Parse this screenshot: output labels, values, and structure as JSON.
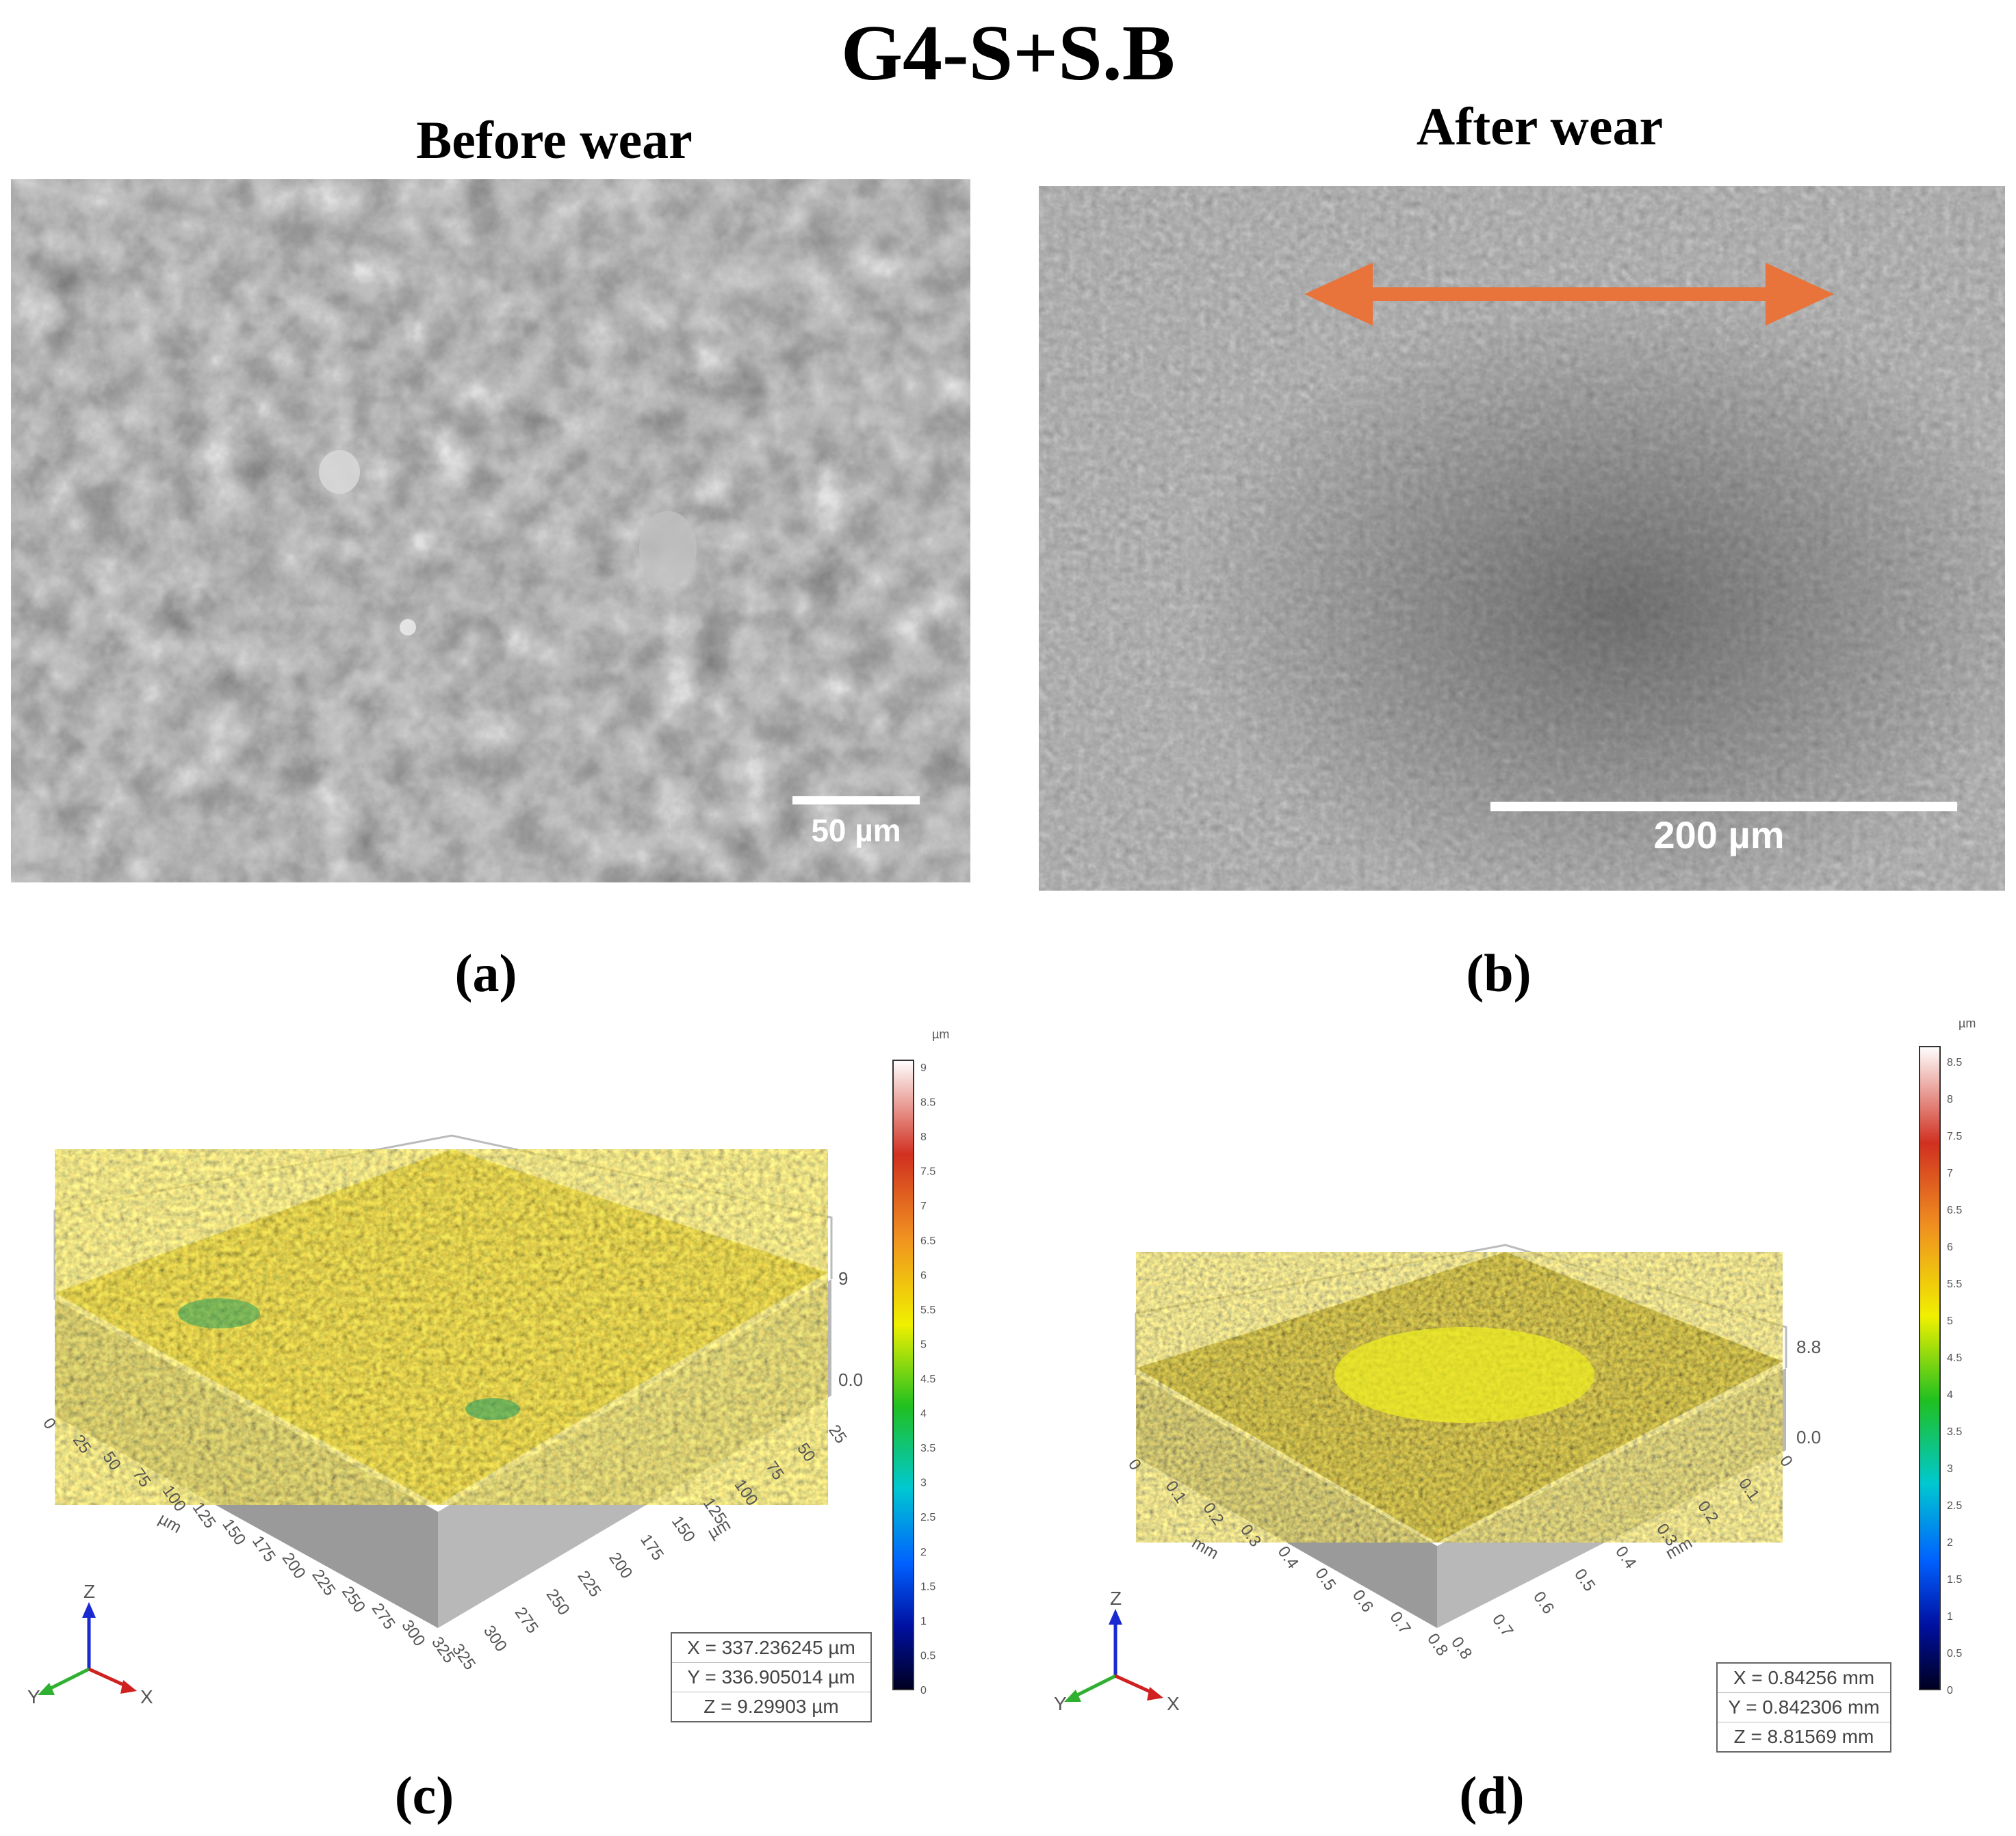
{
  "title": "G4-S+S.B",
  "panels": {
    "a": {
      "caption": "Before wear",
      "label": "(a)",
      "scale_bar": "50 µm"
    },
    "b": {
      "caption": "After  wear",
      "label": "(b)",
      "scale_bar": "200 µm",
      "arrow_color": "#e8743b"
    },
    "c": {
      "label": "(c)",
      "unit_top": "µm",
      "colorbar_ticks": [
        "9",
        "8.5",
        "8",
        "7.5",
        "7",
        "6.5",
        "6",
        "5.5",
        "5",
        "4.5",
        "4",
        "3.5",
        "3",
        "2.5",
        "2",
        "1.5",
        "1",
        "0.5",
        "0"
      ],
      "z_max": "9",
      "z_min": "0.0",
      "x_unit": "µm",
      "y_unit": "µm",
      "x_ticks": [
        "0",
        "25",
        "50",
        "75",
        "100",
        "125",
        "150",
        "175",
        "200",
        "225",
        "250",
        "275",
        "300",
        "325"
      ],
      "y_ticks": [
        "325",
        "300",
        "275",
        "250",
        "225",
        "200",
        "175",
        "150",
        "125",
        "100",
        "75",
        "50",
        "25"
      ],
      "readout": [
        "X = 337.236245 µm",
        "Y = 336.905014 µm",
        "Z = 9.29903 µm"
      ],
      "axes": {
        "z": "Z",
        "y": "Y",
        "x": "X"
      }
    },
    "d": {
      "label": "(d)",
      "unit_top": "µm",
      "colorbar_ticks": [
        "8.5",
        "8",
        "7.5",
        "7",
        "6.5",
        "6",
        "5.5",
        "5",
        "4.5",
        "4",
        "3.5",
        "3",
        "2.5",
        "2",
        "1.5",
        "1",
        "0.5",
        "0"
      ],
      "z_max": "8.8",
      "z_min": "0.0",
      "x_unit": "mm",
      "y_unit": "mm",
      "x_ticks": [
        "0",
        "0.1",
        "0.2",
        "0.3",
        "0.4",
        "0.5",
        "0.6",
        "0.7",
        "0.8"
      ],
      "y_ticks": [
        "0.8",
        "0.7",
        "0.6",
        "0.5",
        "0.4",
        "0.3",
        "0.2",
        "0.1",
        "0"
      ],
      "readout": [
        "X = 0.84256 mm",
        "Y = 0.842306 mm",
        "Z = 8.81569 mm"
      ],
      "axes": {
        "z": "Z",
        "y": "Y",
        "x": "X"
      }
    }
  }
}
